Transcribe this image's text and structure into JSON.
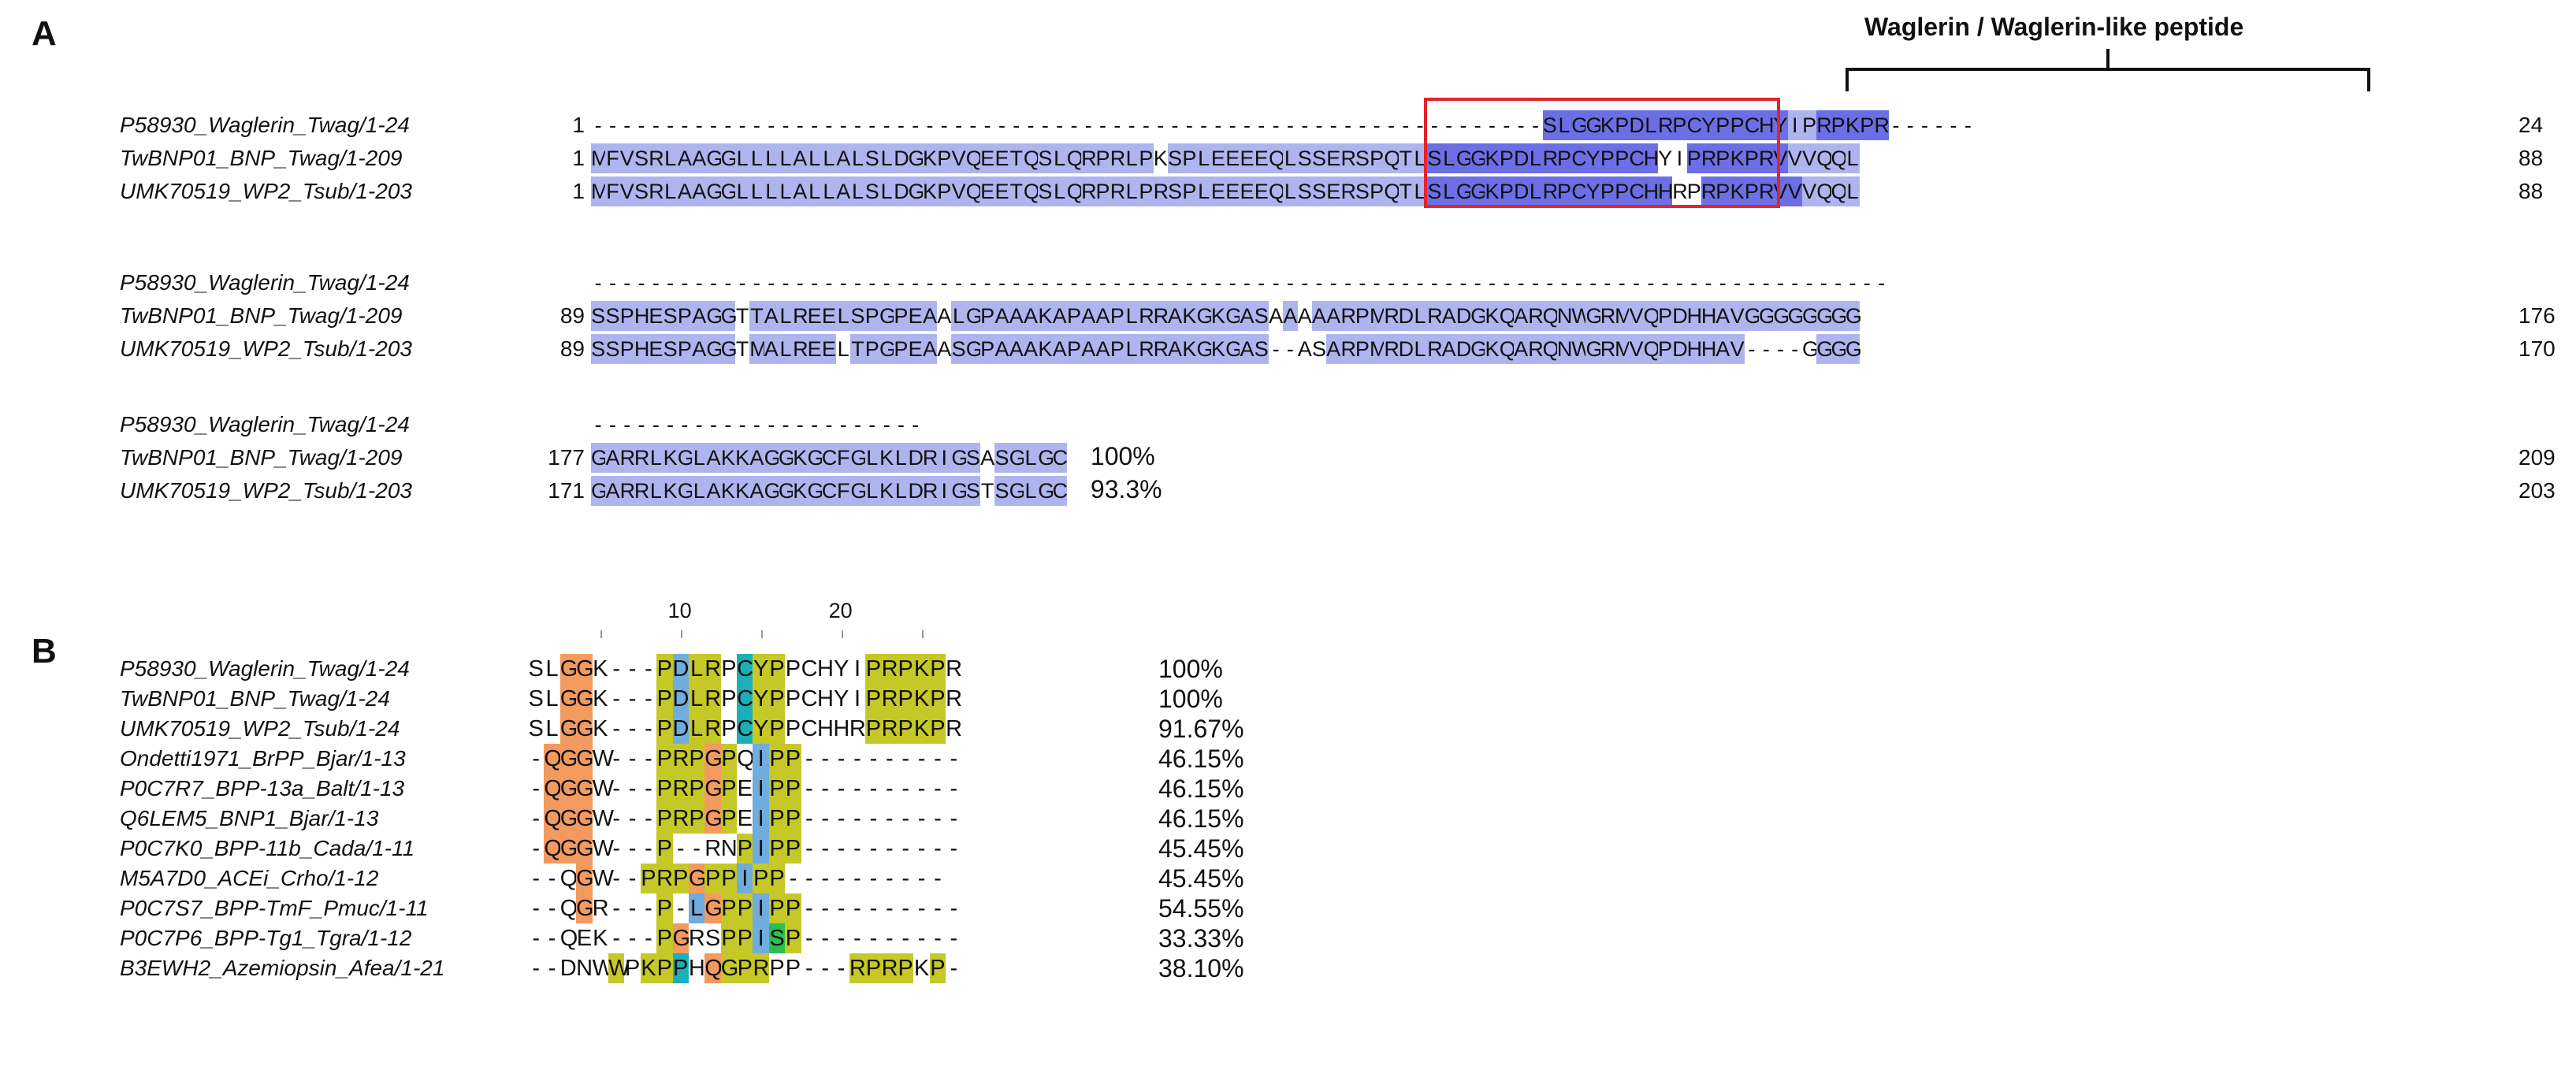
{
  "panelA": {
    "letter": "A",
    "bracket_label": "Waglerin / Waglerin-like peptide",
    "blocks": [
      {
        "rows": [
          {
            "name": "P58930_Waglerin_Twag/1-24",
            "start": "1",
            "end": "24",
            "seq": "------------------------------------------------------------------SLGGKPDLRPCYPPCHYIPRPKPR------",
            "cls": "wwwwwwwwwwwwwwwwwwwwwwwwwwwwwwwwwwwwwwwwwwwwwwwwwwwwwwwwwwwwwwwwwwdddddddddddddddddlldddddddwwwwww"
          },
          {
            "name": "TwBNP01_BNP_Twag/1-209",
            "start": "1",
            "end": "88",
            "seq": "MFVSRLAAGGLLLLALLALSLDGKPVQEETQSLQRPRLPKSPLEEEEQLSSERSPQTLSLGGKPDLRPCYPPCHYIPRPKPRVVVQQL",
            "cls": "lllllllllllllllllllllllllllllllllllllllwllllllllllllllllllddddddddddddddddwwdddddddllllll"
          },
          {
            "name": "UMK70519_WP2_Tsub/1-203",
            "start": "1",
            "end": "88",
            "seq": "MFVSRLAAGGLLLLALLALSLDGKPVQEETQSLQRPRLPRSPLEEEEQLSSERSPQTLSLGGKPDLRPCYPPCHHRPRPKPRVVVQQL",
            "cls": "lllllllllllllllllllllllllllllllllllllllllllllllllllllllllldddddddddddddddddwwdddddddllllll"
          }
        ]
      },
      {
        "rows": [
          {
            "name": "P58930_Waglerin_Twag/1-24",
            "start": "",
            "end": "",
            "seq": "------------------------------------------------------------------------------------------",
            "cls": "wwwwwwwwwwwwwwwwwwwwwwwwwwwwwwwwwwwwwwwwwwwwwwwwwwwwwwwwwwwwwwwwwwwwwwwwwwwwwwwwwwwwwwwwwwwwwwwwwwwwww"
          },
          {
            "name": "TwBNP01_BNP_Twag/1-209",
            "start": "89",
            "end": "176",
            "seq": "SSPHESPAGGTTALREELSPGPEAALGPAAAKAPAAPLRRAKGKGASAAAAARPMRDLRADGKQARQNWGRMVQPDHHAVGGGGGGGG",
            "cls": "llllllllllwlllllllllllllwllllllllllllllllllllllwlwlllllllllllllllllllllllllllllllllllllll"
          },
          {
            "name": "UMK70519_WP2_Tsub/1-203",
            "start": "89",
            "end": "170",
            "seq": "SSPHESPAGGTMALREELTPGPEAASGPAAAKAPAAPLRRAKGKGAS--ASARPMRDLRADGKQARQNWGRMVQPDHHAV----GGGG",
            "cls": "llllllllllwllllllwllllllwllllllllllllllllllllllwwwwllllllllllllllllllllllllllllllwwwwllll"
          }
        ]
      },
      {
        "rows": [
          {
            "name": "P58930_Waglerin_Twag/1-24",
            "start": "",
            "end": "",
            "seq": "-----------------------",
            "cls": "wwwwwwwwwwwwwwwwwwwwwww",
            "pct": ""
          },
          {
            "name": "TwBNP01_BNP_Twag/1-209",
            "start": "177",
            "end": "209",
            "seq": "GARRLKGLAKKAGGKGCFGLKLDRIGSASGLGC",
            "cls": "lllllllllllllllllllllllllllwlllll",
            "pct": "100%"
          },
          {
            "name": "UMK70519_WP2_Tsub/1-203",
            "start": "171",
            "end": "203",
            "seq": "GARRLKGLAKKAGGKGCFGLKLDRIGSTSGLGC",
            "cls": "lllllllllllllllllllllllllllwlllll",
            "pct": "93.3%"
          }
        ]
      }
    ]
  },
  "panelB": {
    "letter": "B",
    "ruler": [
      "10",
      "20"
    ],
    "rows": [
      {
        "name": "P58930_Waglerin_Twag/1-24",
        "seq": "SLGGK---PDLRPCYPPCHYIPRPKPR",
        "cls": "wwggwwwwybyywtyywwwwwyyyyyw",
        "pct": "100%"
      },
      {
        "name": "TwBNP01_BNP_Twag/1-24",
        "seq": "SLGGK---PDLRPCYPPCHYIPRPKPR",
        "cls": "wwggwwwwybyywtyywwwwwyyyyyw",
        "pct": "100%"
      },
      {
        "name": "UMK70519_WP2_Tsub/1-24",
        "seq": "SLGGK---PDLRPCYPPCHHRPRPKPR",
        "cls": "wwggwwwwybyywtyywwwwwyyyyyw",
        "pct": "91.67%"
      },
      {
        "name": "Ondetti1971_BrPP_Bjar/1-13",
        "seq": "-QGGW---PRPGPQIPP----------",
        "cls": "wgggwwwwyyygywbyywwwwwwwwww",
        "pct": "46.15%"
      },
      {
        "name": "P0C7R7_BPP-13a_Balt/1-13",
        "seq": "-QGGW---PRPGPEIPP----------",
        "cls": "wgggwwwwyyygywbyywwwwwwwwww",
        "pct": "46.15%"
      },
      {
        "name": "Q6LEM5_BNP1_Bjar/1-13",
        "seq": "-QGGW---PRPGPEIPP----------",
        "cls": "wgggwwwwyyygywbyywwwwwwwwww",
        "pct": "46.15%"
      },
      {
        "name": "P0C7K0_BPP-11b_Cada/1-11",
        "seq": "-QGGW---P--RNPIPP----------",
        "cls": "wgggwwwwywwwwybyywwwwwwwwww",
        "pct": "45.45%"
      },
      {
        "name": "M5A7D0_ACEi_Crho/1-12",
        "seq": "--QGW--PRPGPPIPP----------",
        "cls": "wwwgwwwyyygyybyywwwwwwwwww",
        "pct": "45.45%"
      },
      {
        "name": "P0C7S7_BPP-TmF_Pmuc/1-11",
        "seq": "--QGR---P-LGPPIPP----------",
        "cls": "wwwgwwwwywbgyybyywwwwwwwwww",
        "pct": "54.55%"
      },
      {
        "name": "P0C7P6_BPP-Tg1_Tgra/1-12",
        "seq": "--QEK---PGRSPPISP----------",
        "cls": "wwwwwwwwygwwyybqywwwwwwwwww",
        "pct": "33.33%"
      },
      {
        "name": "B3EWH2_Azemiopsin_Afea/1-21",
        "seq": "--DNWWPKPPHQGPRPP---RPRPKP-",
        "cls": "wwwwwywyytwgyyywwwwwyyyywyw",
        "pct": "38.10%"
      }
    ]
  },
  "colors": {
    "light_blue": "#aeb4ee",
    "dark_blue": "#6c6ee6",
    "orange": "#f39a5e",
    "olive": "#c6c827",
    "sky": "#70acdc",
    "teal": "#1bb0b8",
    "green": "#2bbf4b",
    "box_red": "#e2242b"
  }
}
